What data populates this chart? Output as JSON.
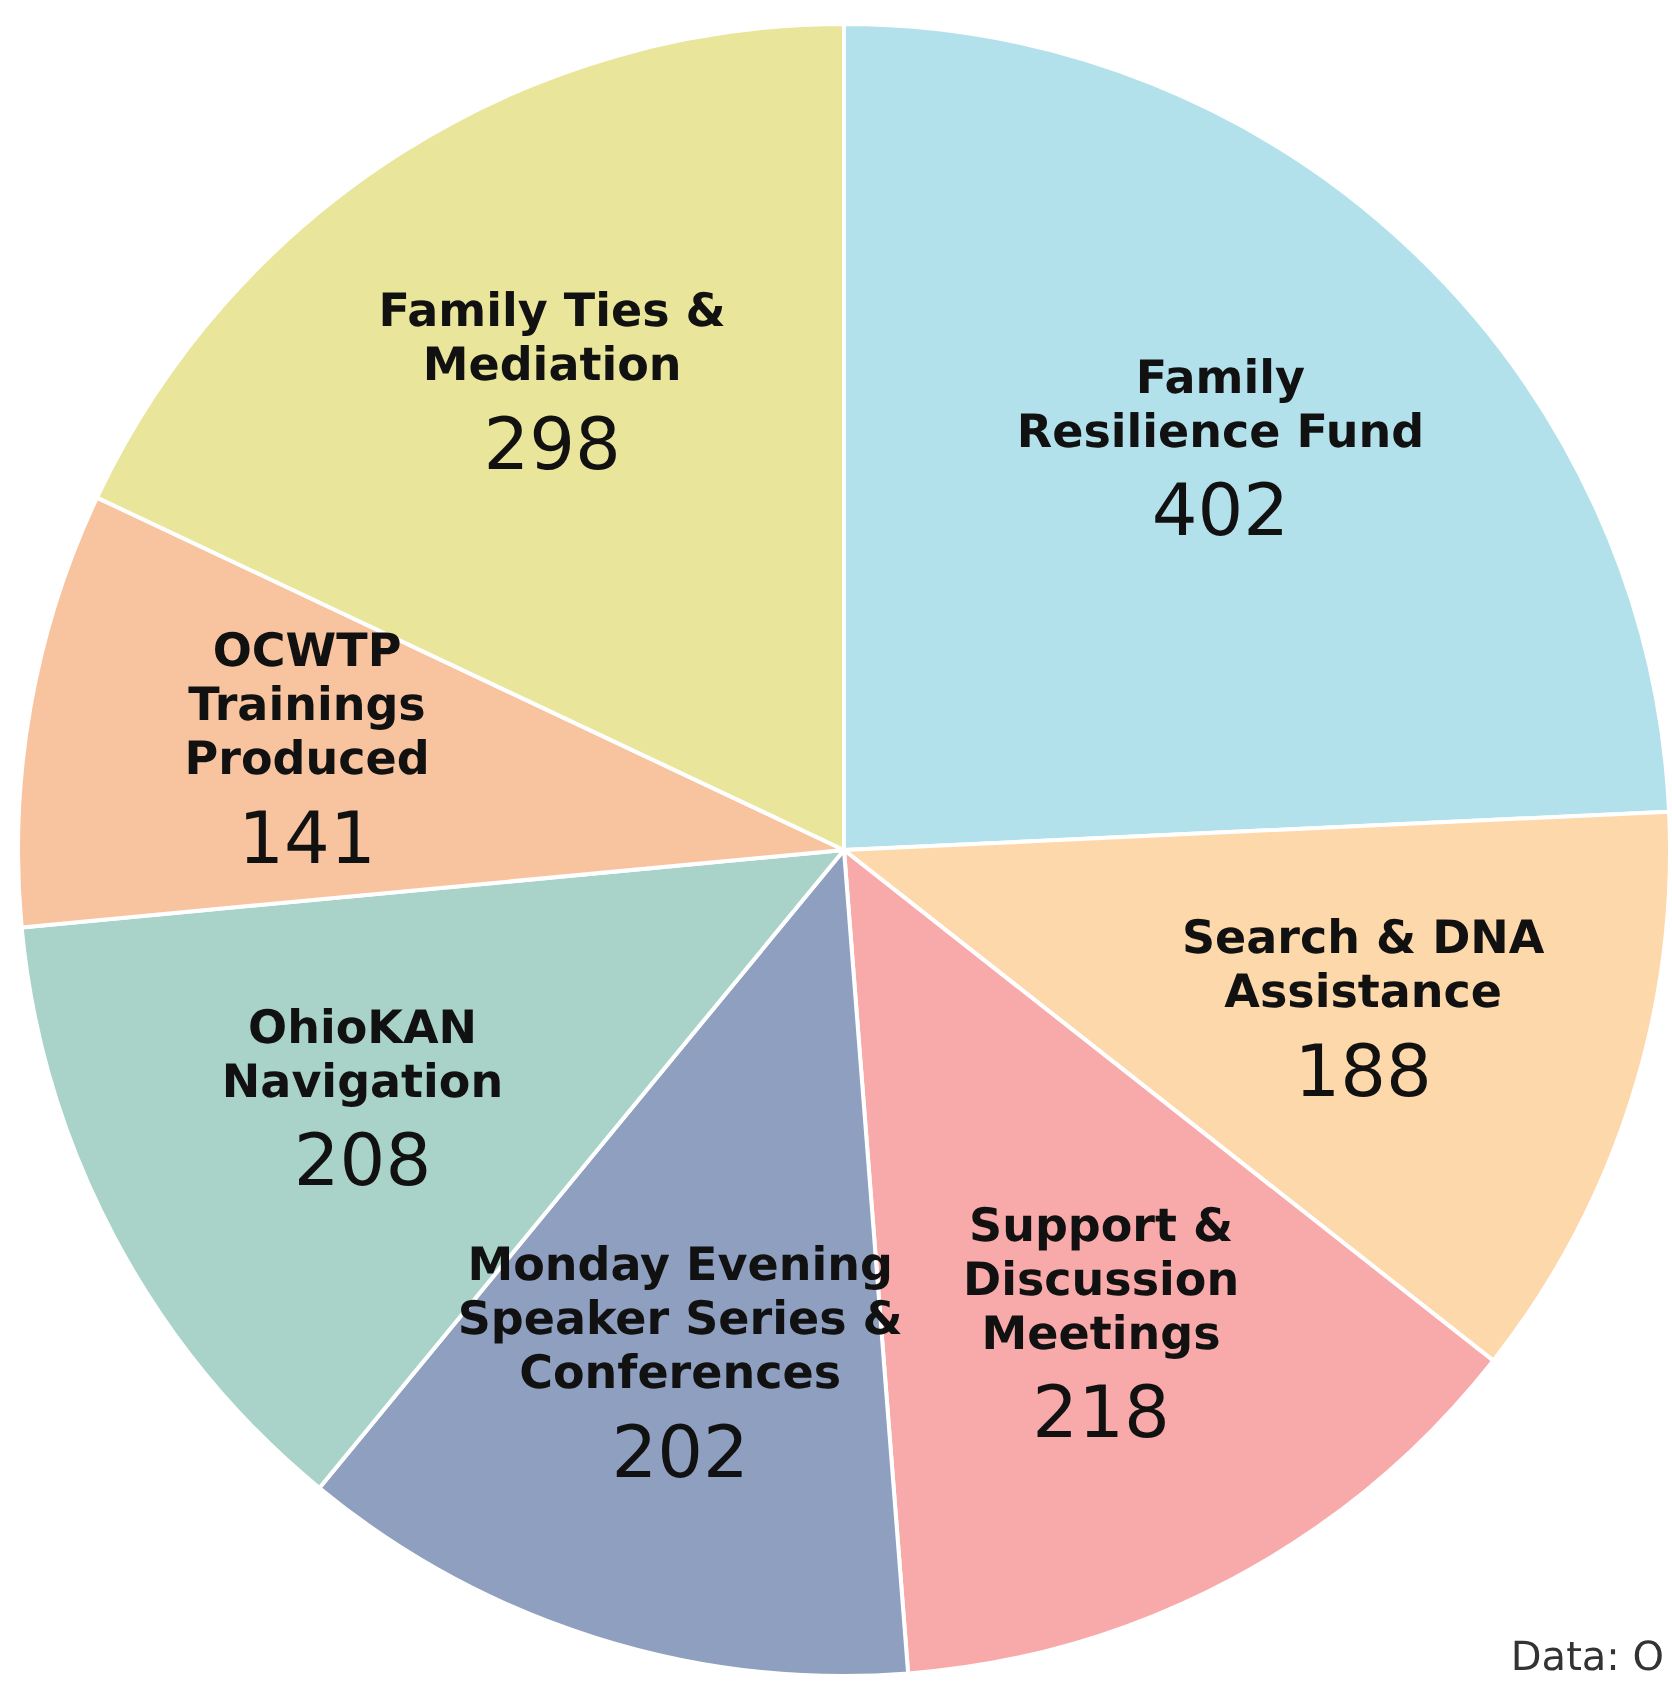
{
  "chart_data": {
    "type": "pie",
    "categories": [
      "Family\nResilience Fund",
      "Search & DNA\nAssistance",
      "Support &\nDiscussion\nMeetings",
      "Monday Evening\nSpeaker Series &\nConferences",
      "OhioKAN\nNavigation",
      "OCWTP\nTrainings\nProduced",
      "Family Ties &\nMediation"
    ],
    "values": [
      402,
      188,
      218,
      202,
      208,
      141,
      298
    ],
    "colors": [
      "#b2e1eb",
      "#fdd8ab",
      "#f8aaaa",
      "#8e9fc0",
      "#a9d3c8",
      "#f8c4a0",
      "#e9e59a"
    ],
    "data_labels": true,
    "legend": false,
    "annotations": [
      "Data: O"
    ]
  }
}
